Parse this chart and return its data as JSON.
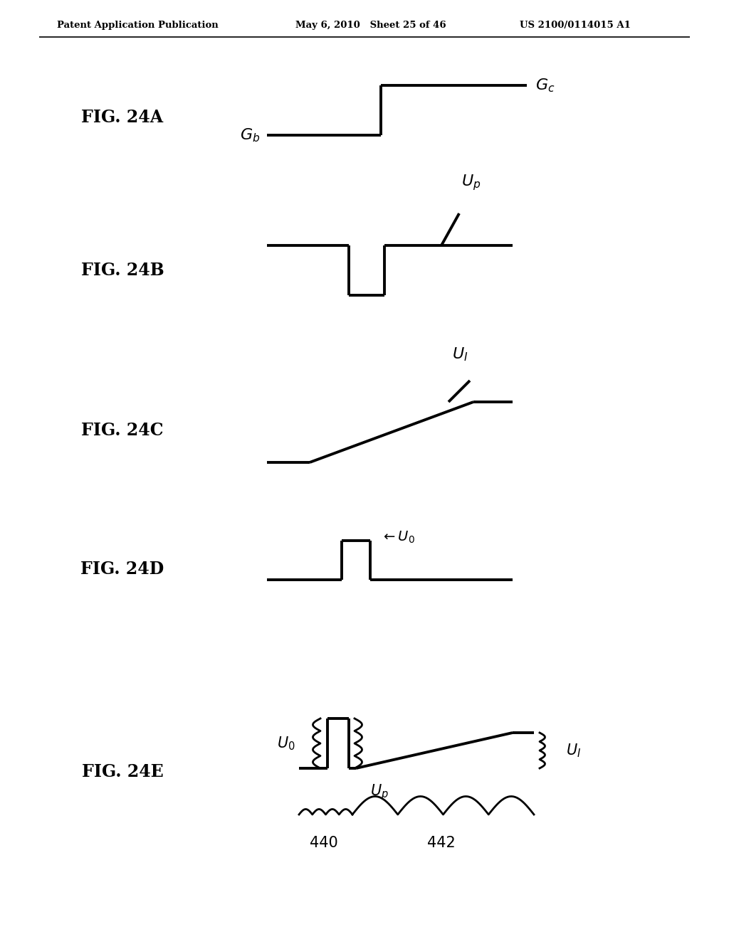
{
  "header_left": "Patent Application Publication",
  "header_mid": "May 6, 2010   Sheet 25 of 46",
  "header_right": "US 2100/0114015 A1",
  "bg_color": "#ffffff",
  "line_color": "#000000",
  "line_width": 2.8
}
